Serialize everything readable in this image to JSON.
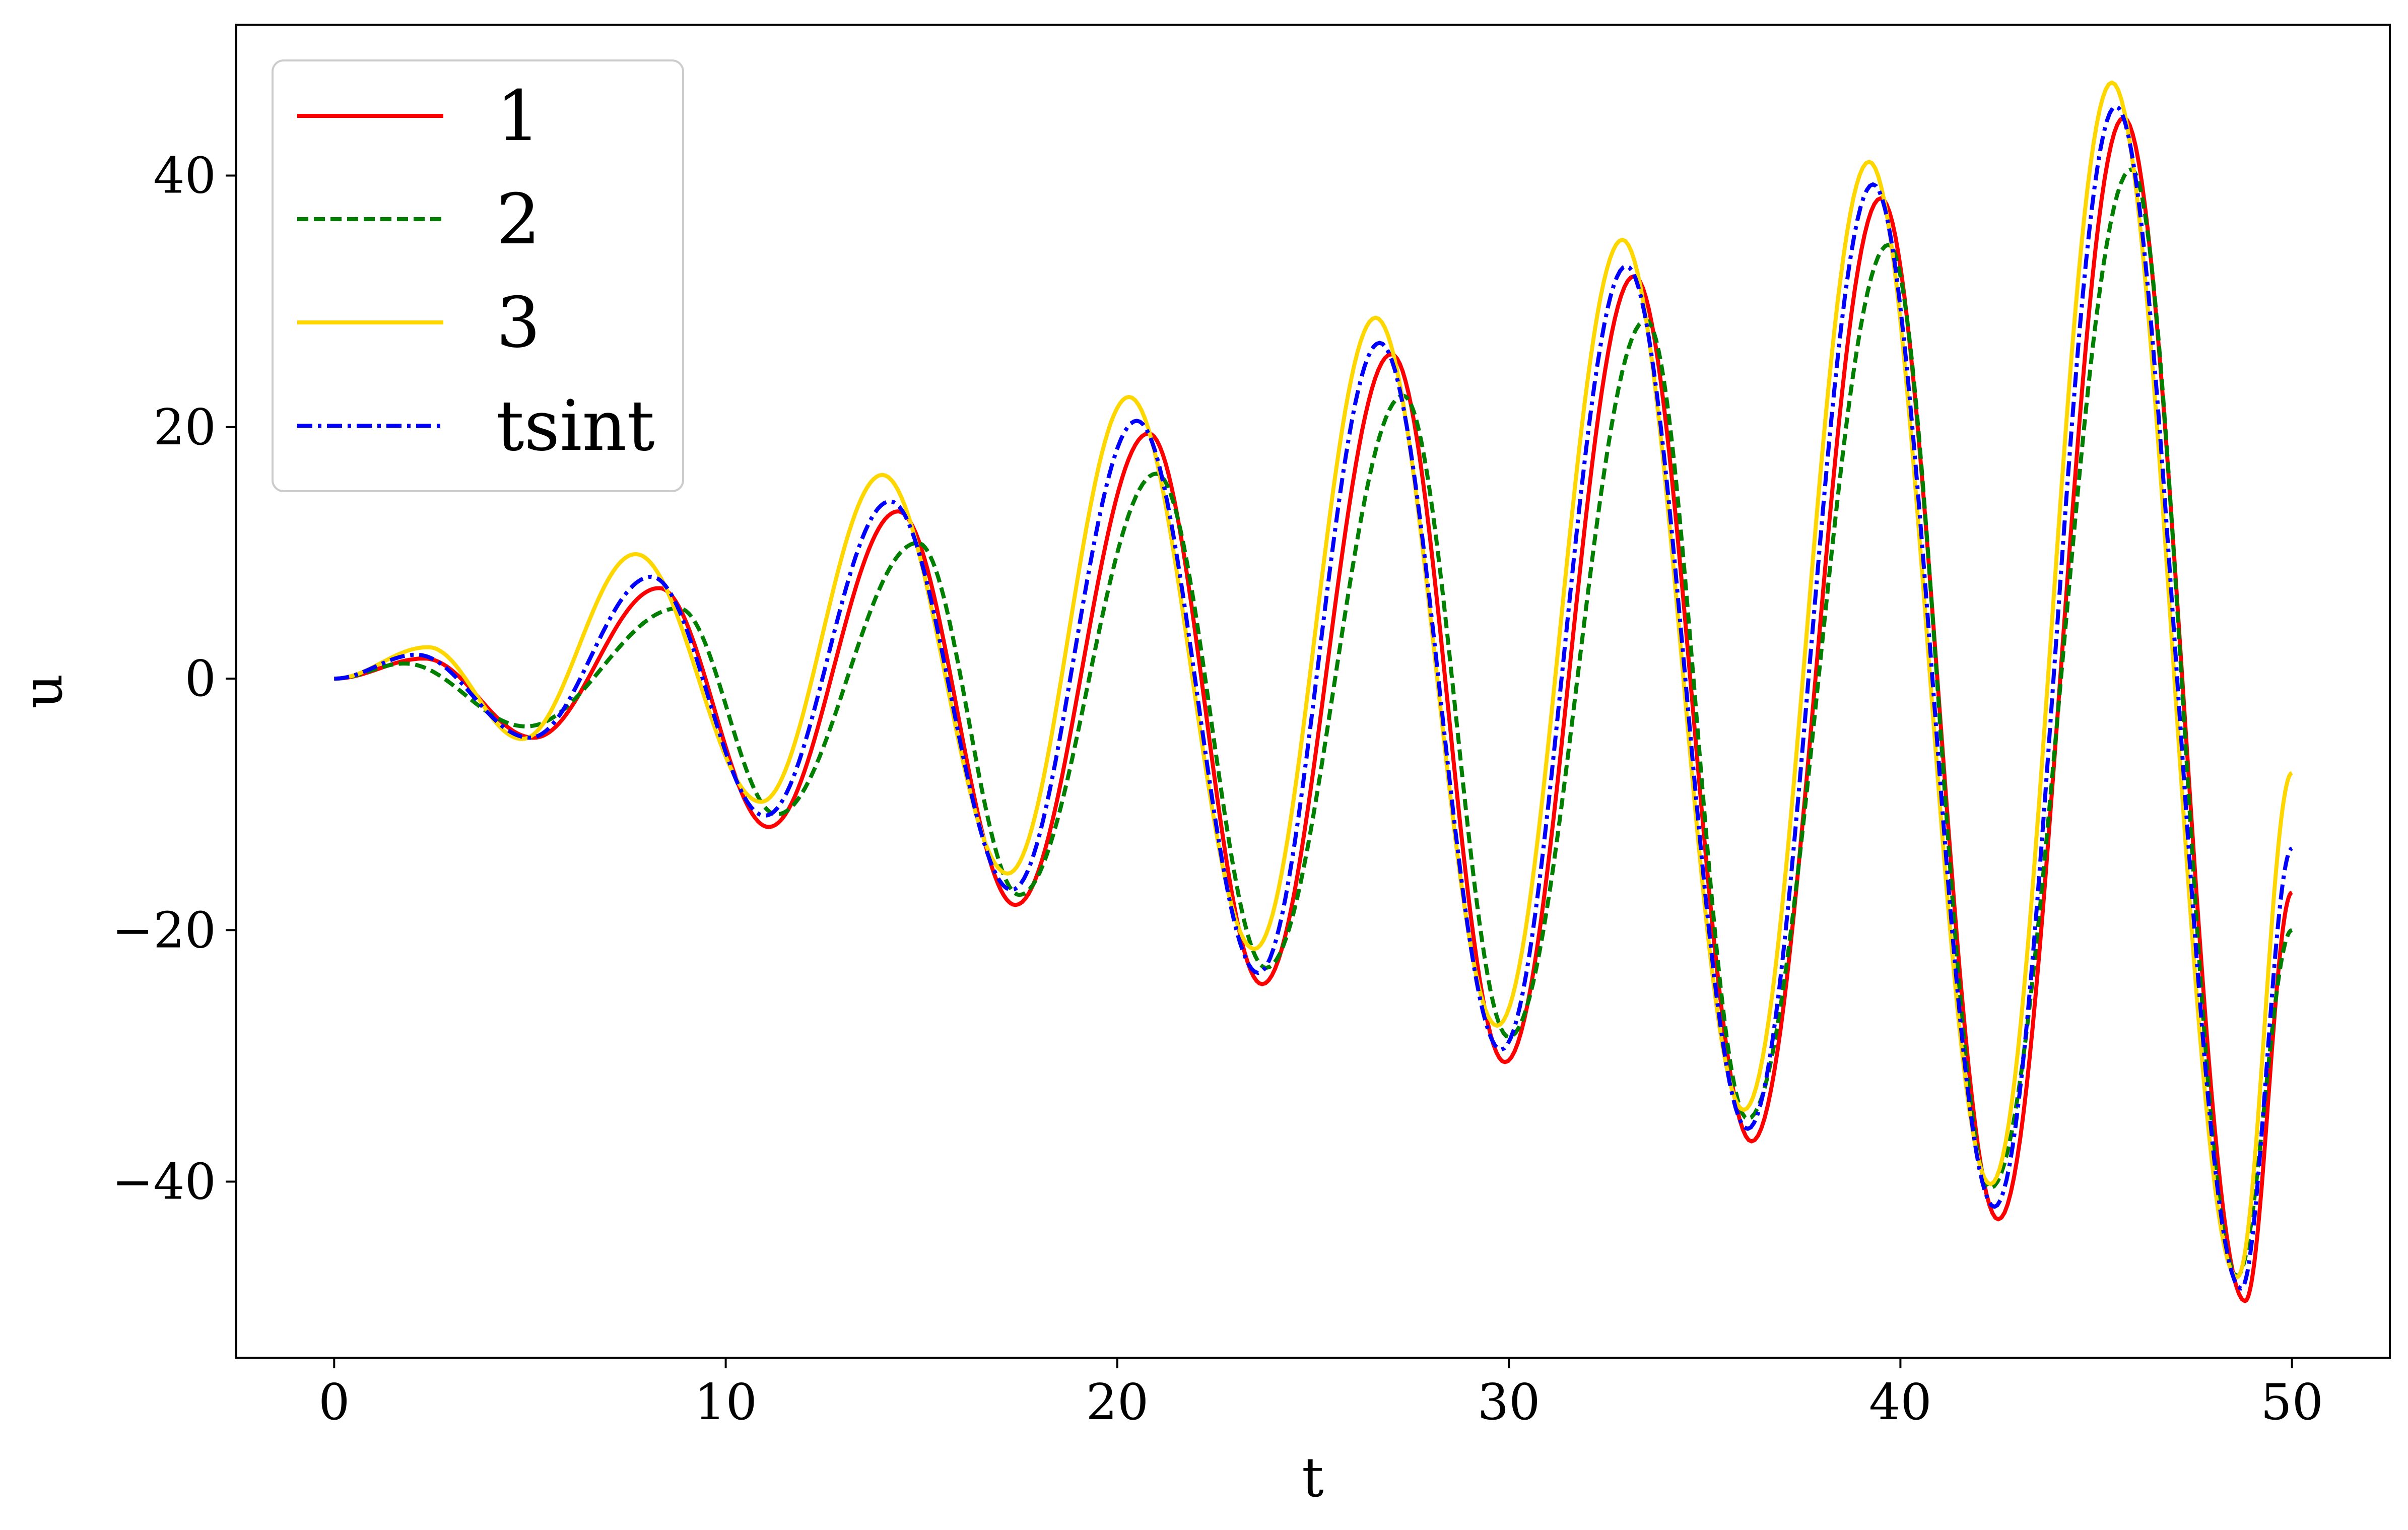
{
  "chart_data": {
    "type": "line",
    "title": "",
    "xlabel": "t",
    "ylabel": "u",
    "xlim": [
      -2.5,
      52.5
    ],
    "ylim": [
      -54,
      52
    ],
    "xticks": [
      0,
      10,
      20,
      30,
      40,
      50
    ],
    "xtick_labels": [
      "0",
      "10",
      "20",
      "30",
      "40",
      "50"
    ],
    "yticks": [
      -40,
      -20,
      0,
      20,
      40
    ],
    "ytick_labels": [
      "−40",
      "−20",
      "0",
      "20",
      "40"
    ],
    "grid": false,
    "legend_position": "upper-left",
    "series": [
      {
        "name": "1",
        "color": "#ff0000",
        "dash": "solid",
        "x": [
          0,
          2.3,
          5.1,
          8.3,
          11.1,
          14.4,
          17.4,
          20.8,
          23.7,
          27.0,
          29.9,
          33.2,
          36.2,
          39.5,
          42.5,
          45.7,
          48.8,
          50.0
        ],
        "y": [
          0,
          1.6,
          -4.7,
          7.2,
          -11.8,
          13.3,
          -18.0,
          19.5,
          -24.3,
          25.8,
          -30.5,
          32.0,
          -36.8,
          38.2,
          -43.0,
          44.6,
          -49.5,
          -17
        ]
      },
      {
        "name": "2",
        "color": "#007f00",
        "dash": "dashed",
        "x": [
          0,
          1.8,
          4.9,
          8.8,
          11.3,
          14.9,
          17.5,
          21.0,
          23.8,
          27.3,
          30.0,
          33.5,
          36.1,
          39.7,
          42.3,
          45.9,
          48.6,
          50.0
        ],
        "y": [
          0,
          1.2,
          -3.8,
          5.6,
          -10.8,
          10.8,
          -17.2,
          16.3,
          -23.0,
          22.5,
          -28.5,
          28.5,
          -35.0,
          34.5,
          -40.5,
          40.5,
          -47.5,
          -20
        ]
      },
      {
        "name": "3",
        "color": "#ffd700",
        "dash": "solid",
        "x": [
          0,
          2.4,
          4.8,
          7.7,
          10.9,
          14.0,
          17.2,
          20.3,
          23.5,
          26.6,
          29.7,
          32.9,
          36.0,
          39.2,
          42.3,
          45.4,
          48.6,
          50.0
        ],
        "y": [
          0,
          2.5,
          -4.8,
          9.9,
          -9.8,
          16.2,
          -15.5,
          22.4,
          -21.5,
          28.7,
          -27.6,
          34.9,
          -34.3,
          41.1,
          -40.2,
          47.4,
          -47.6,
          -7.5
        ]
      },
      {
        "name": "tsint",
        "color": "#0000ff",
        "dash": "dashdot",
        "x": [
          0,
          2.1,
          5.0,
          8.1,
          11.0,
          14.2,
          17.3,
          20.5,
          23.6,
          26.7,
          29.8,
          33.0,
          36.1,
          39.3,
          42.4,
          45.5,
          48.7,
          50.0
        ],
        "y": [
          0,
          1.9,
          -4.7,
          8.1,
          -10.9,
          14.1,
          -16.8,
          20.5,
          -23.4,
          26.7,
          -29.5,
          32.8,
          -35.8,
          39.3,
          -42.0,
          45.5,
          -48.5,
          -13.5
        ]
      }
    ]
  }
}
